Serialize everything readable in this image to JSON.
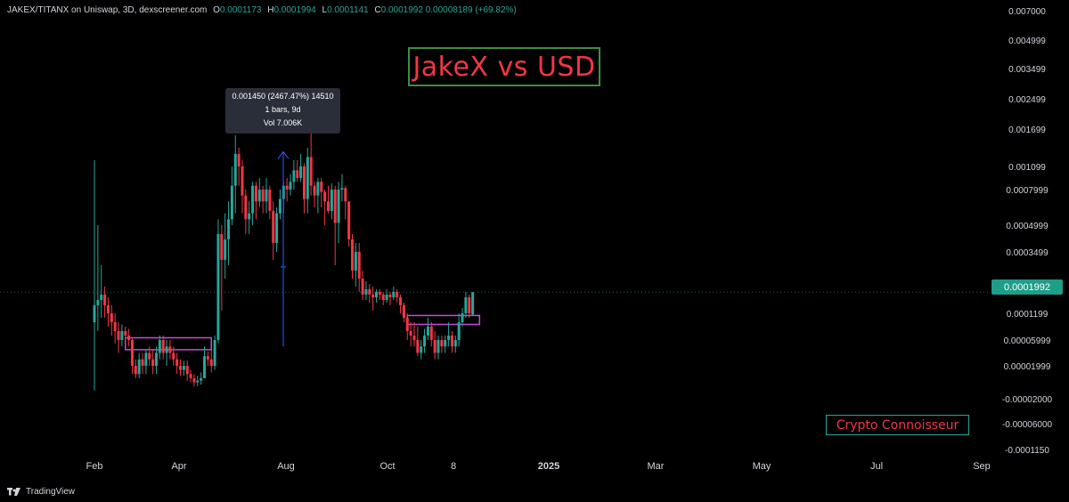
{
  "header": {
    "symbol": "JAKEX/TITANX on Uniswap, 3D, dexscreener.com",
    "open_label": "O",
    "open": "0.0001173",
    "high_label": "H",
    "high": "0.0001994",
    "low_label": "L",
    "low": "0.0001141",
    "close_label": "C",
    "close": "0.0001992",
    "change": "0.00008189 (+69.82%)"
  },
  "annotations": {
    "title": "JakeX vs USD",
    "credit": "Crypto Connoisseur",
    "tooltip_line1": "0.001450 (2467.47%) 14510",
    "tooltip_line2": "1 bars, 9d",
    "tooltip_line3": "Vol 7.006K",
    "current_price": "0.0001992"
  },
  "footer": {
    "brand": "TradingView"
  },
  "colors": {
    "up": "#26a69a",
    "down": "#f23645",
    "background": "#000000",
    "box": "#c64bd8",
    "arrow": "#2962ff"
  },
  "chart_data": {
    "type": "candlestick",
    "axis_scale": "nonlinear",
    "x_tick_labels": [
      "Feb",
      "Apr",
      "Aug",
      "Oct",
      "8",
      "2025",
      "Mar",
      "May",
      "Jul",
      "Sep"
    ],
    "y_tick_labels": [
      "0.007000",
      "0.004999",
      "0.003499",
      "0.002499",
      "0.001699",
      "0.001099",
      "0.0007999",
      "0.0004999",
      "0.0003499",
      "0.0001199",
      "0.00005999",
      "0.00001999",
      "-0.00002000",
      "-0.00006000",
      "-0.0001150"
    ],
    "current_price_label": "0.0001992",
    "series": [
      {
        "candles": [
          [
            0.0001,
            0.00015,
            0.0012,
            -1e-05
          ],
          [
            0.00015,
            0.00017,
            0.0005,
            8e-05
          ],
          [
            0.00017,
            0.00019,
            0.0003,
            0.00011
          ],
          [
            0.00019,
            0.00015,
            0.00022,
            0.00011
          ],
          [
            0.00015,
            0.00012,
            0.00018,
            9e-05
          ],
          [
            0.00012,
            0.0001,
            0.00015,
            7e-05
          ],
          [
            0.0001,
            8e-05,
            0.00012,
            5.5e-05
          ],
          [
            8e-05,
            6e-05,
            0.0001,
            4e-05
          ],
          [
            6e-05,
            8e-05,
            9.5e-05,
            5e-05
          ],
          [
            8e-05,
            7e-05,
            9e-05,
            5.5e-05
          ],
          [
            7e-05,
            6e-05,
            8.5e-05,
            5e-05
          ],
          [
            6e-05,
            2e-05,
            6.5e-05,
            1e-05
          ],
          [
            2e-05,
            1e-05,
            3e-05,
            5e-06
          ],
          [
            1e-05,
            3e-05,
            4e-05,
            5e-06
          ],
          [
            3e-05,
            2e-05,
            4e-05,
            1e-05
          ],
          [
            2e-05,
            4e-05,
            4.5e-05,
            1e-05
          ],
          [
            4e-05,
            3e-05,
            5e-05,
            2e-05
          ],
          [
            3e-05,
            2e-05,
            4.5e-05,
            1e-05
          ],
          [
            2e-05,
            4e-05,
            5e-05,
            1e-05
          ],
          [
            4e-05,
            6e-05,
            7e-05,
            3e-05
          ],
          [
            6e-05,
            4e-05,
            7e-05,
            3e-05
          ],
          [
            4e-05,
            5e-05,
            6e-05,
            2e-05
          ],
          [
            5e-05,
            4e-05,
            6e-05,
            3e-05
          ],
          [
            4e-05,
            3e-05,
            5e-05,
            2e-05
          ],
          [
            3e-05,
            2e-05,
            4e-05,
            1e-05
          ],
          [
            2e-05,
            1.5e-05,
            3e-05,
            8e-06
          ],
          [
            1.5e-05,
            2e-05,
            2.8e-05,
            8e-06
          ],
          [
            2e-05,
            1e-05,
            2.8e-05,
            2e-06
          ],
          [
            1e-05,
            5e-06,
            1.5e-05,
            0.0
          ],
          [
            5e-06,
            0.0,
            1e-05,
            -5e-06
          ],
          [
            0.0,
            2e-06,
            8e-06,
            -5e-06
          ],
          [
            2e-06,
            5e-06,
            1.2e-05,
            -3e-06
          ],
          [
            5e-06,
            3.5e-05,
            5e-05,
            5e-06
          ],
          [
            3.5e-05,
            3e-05,
            4.2e-05,
            2e-05
          ],
          [
            3e-05,
            2e-05,
            4.5e-05,
            1.2e-05
          ],
          [
            2e-05,
            6e-05,
            7e-05,
            1.5e-05
          ],
          [
            6e-05,
            0.00045,
            0.00055,
            5.5e-05
          ],
          [
            0.00045,
            0.00032,
            0.0005,
            0.00013
          ],
          [
            0.00032,
            0.00042,
            0.0006,
            0.00025
          ],
          [
            0.00042,
            0.00055,
            0.0007,
            0.0003
          ],
          [
            0.00055,
            0.00085,
            0.0011,
            0.0005
          ],
          [
            0.00085,
            0.0013,
            0.0016,
            0.0006
          ],
          [
            0.0013,
            0.0011,
            0.0014,
            0.00085
          ],
          [
            0.0011,
            0.00075,
            0.0012,
            0.0006
          ],
          [
            0.00075,
            0.00055,
            0.0008,
            0.00045
          ],
          [
            0.00055,
            0.0006,
            0.0007,
            0.00045
          ],
          [
            0.0006,
            0.00085,
            0.0009,
            0.0005
          ],
          [
            0.00085,
            0.0007,
            0.0009,
            0.00055
          ],
          [
            0.0007,
            0.0008,
            0.00095,
            0.00065
          ],
          [
            0.0008,
            0.0007,
            0.00085,
            0.0006
          ],
          [
            0.0007,
            0.0008,
            0.00095,
            0.0006
          ],
          [
            0.0008,
            0.00062,
            0.00085,
            0.00055
          ],
          [
            0.00062,
            0.0004,
            0.0007,
            0.00032
          ],
          [
            0.0004,
            0.0006,
            0.00065,
            0.00035
          ],
          [
            0.0006,
            0.00072,
            0.0008,
            0.00055
          ],
          [
            0.00072,
            0.00085,
            0.0009,
            0.0006
          ],
          [
            0.00085,
            0.0008,
            0.00095,
            0.0007
          ],
          [
            0.0008,
            0.0009,
            0.001,
            0.00075
          ],
          [
            0.0009,
            0.00105,
            0.0012,
            0.0008
          ],
          [
            0.00105,
            0.00095,
            0.0012,
            0.0009
          ],
          [
            0.00095,
            0.0011,
            0.0013,
            0.0009
          ],
          [
            0.0011,
            0.00072,
            0.00115,
            0.0006
          ],
          [
            0.00072,
            0.00125,
            0.0014,
            0.0006
          ],
          [
            0.00125,
            0.00085,
            0.0018,
            0.00075
          ],
          [
            0.00085,
            0.00075,
            0.0009,
            0.00065
          ],
          [
            0.00075,
            0.0009,
            0.00095,
            0.0006
          ],
          [
            0.0009,
            0.00078,
            0.00095,
            0.00065
          ],
          [
            0.00078,
            0.0007,
            0.0008,
            0.0005
          ],
          [
            0.0007,
            0.00062,
            0.00085,
            0.0006
          ],
          [
            0.00062,
            0.0008,
            0.00088,
            0.00055
          ],
          [
            0.0008,
            0.00052,
            0.00085,
            0.0003
          ],
          [
            0.00052,
            0.0008,
            0.0009,
            0.0004
          ],
          [
            0.0008,
            0.00082,
            0.001,
            0.0007
          ],
          [
            0.00082,
            0.0007,
            0.00085,
            0.00055
          ],
          [
            0.0007,
            0.00042,
            0.0007,
            0.00038
          ],
          [
            0.00042,
            0.00028,
            0.00045,
            0.00025
          ],
          [
            0.00028,
            0.00035,
            0.0004,
            0.00022
          ],
          [
            0.00035,
            0.00025,
            0.0004,
            0.0002
          ],
          [
            0.00025,
            0.00019,
            0.00028,
            0.00017
          ],
          [
            0.00019,
            0.00021,
            0.00024,
            0.00017
          ],
          [
            0.00021,
            0.00019,
            0.00023,
            0.00016
          ],
          [
            0.00019,
            0.00018,
            0.00022,
            0.00013
          ],
          [
            0.00018,
            0.0002,
            0.00021,
            0.00016
          ],
          [
            0.0002,
            0.00019,
            0.00021,
            0.00017
          ],
          [
            0.00019,
            0.00017,
            0.0002,
            0.00015
          ],
          [
            0.00017,
            0.00019,
            0.00021,
            0.00016
          ],
          [
            0.00019,
            0.00018,
            0.0002,
            0.00015
          ],
          [
            0.00018,
            0.0002,
            0.00022,
            0.00017
          ],
          [
            0.0002,
            0.00018,
            0.00021,
            0.00016
          ],
          [
            0.00018,
            0.00015,
            0.00019,
            0.00012
          ],
          [
            0.00015,
            0.00011,
            0.00016,
            0.0001
          ],
          [
            0.00011,
            8e-05,
            0.00012,
            6e-05
          ],
          [
            8e-05,
            7e-05,
            0.0001,
            5e-05
          ],
          [
            7e-05,
            6e-05,
            0.0001,
            5e-05
          ],
          [
            6e-05,
            4e-05,
            9e-05,
            3.5e-05
          ],
          [
            4e-05,
            5e-05,
            6e-05,
            3e-05
          ],
          [
            5e-05,
            7e-05,
            8.5e-05,
            4e-05
          ],
          [
            7e-05,
            9e-05,
            0.00011,
            6e-05
          ],
          [
            9e-05,
            6e-05,
            0.0001,
            5e-05
          ],
          [
            6e-05,
            4e-05,
            8e-05,
            3e-05
          ],
          [
            4e-05,
            6e-05,
            7e-05,
            3e-05
          ],
          [
            6e-05,
            5e-05,
            7e-05,
            4e-05
          ],
          [
            5e-05,
            6e-05,
            7e-05,
            4e-05
          ],
          [
            6e-05,
            7e-05,
            0.0001,
            5e-05
          ],
          [
            7e-05,
            5e-05,
            8e-05,
            4e-05
          ],
          [
            5e-05,
            6e-05,
            7e-05,
            4e-05
          ],
          [
            6e-05,
            0.0001,
            0.00012,
            5e-05
          ],
          [
            0.0001,
            0.00012,
            0.00014,
            9e-05
          ],
          [
            0.00012,
            0.00018,
            0.0002,
            0.00011
          ],
          [
            0.00018,
            0.00012,
            0.00019,
            0.00011
          ],
          [
            0.0001173,
            0.0001992,
            0.0001994,
            0.0001141
          ]
        ]
      }
    ],
    "measure_arrow": {
      "from": 5e-05,
      "to": 0.00145
    },
    "boxes": [
      {
        "from_index": 18,
        "to_index": 68,
        "low": 4.5e-05,
        "high": 6.5e-05
      },
      {
        "from_index": 182,
        "to_index": 224,
        "low": 9.5e-05,
        "high": 0.000115
      }
    ]
  }
}
